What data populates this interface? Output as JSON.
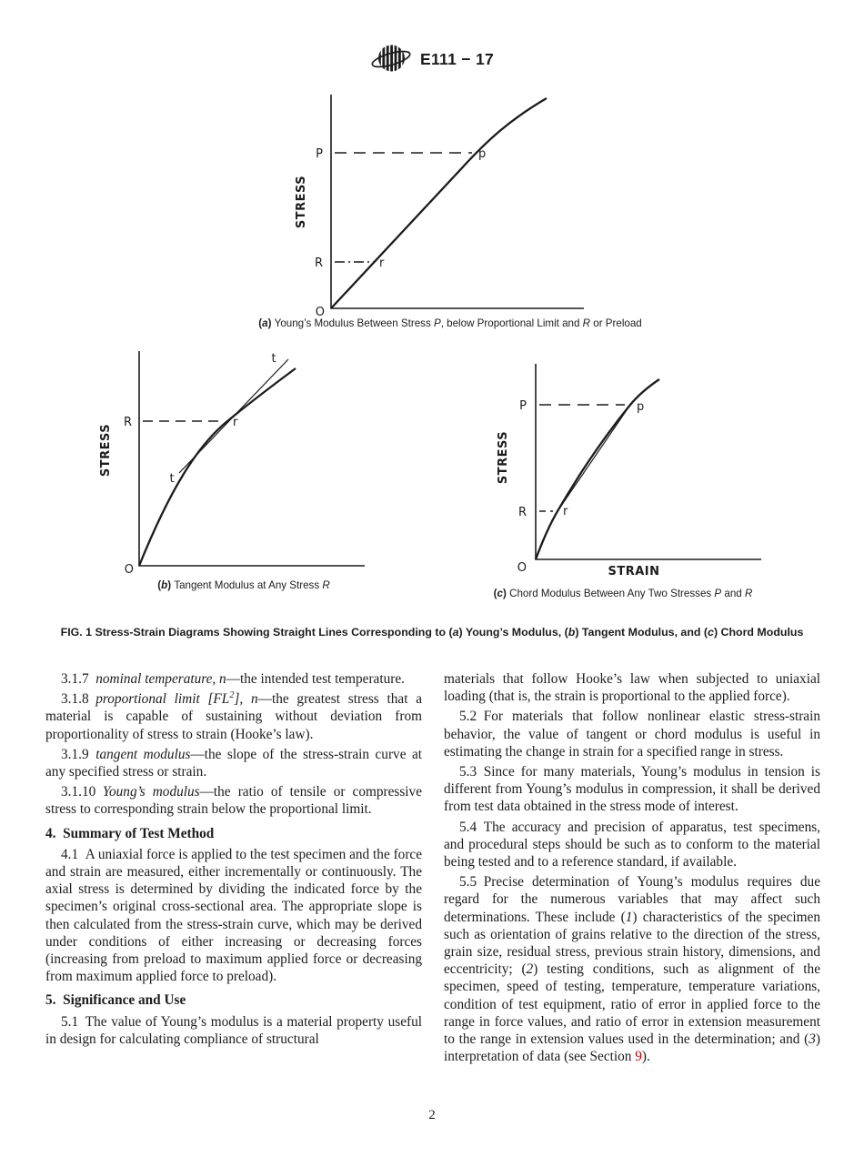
{
  "header": {
    "designation": "E111 − 17",
    "logo": "astm-logo"
  },
  "figures": {
    "a": {
      "stress_axis": "STRESS",
      "origin": "O",
      "point_P": "P",
      "point_p": "p",
      "point_R": "R",
      "point_r": "r",
      "caption": [
        {
          "t": "(",
          "b": true
        },
        {
          "t": "a",
          "b": true,
          "i": true
        },
        {
          "t": ") ",
          "b": true
        },
        {
          "t": "Young’s Modulus Between Stress "
        },
        {
          "t": "P",
          "i": true
        },
        {
          "t": ", below Proportional Limit and "
        },
        {
          "t": "R",
          "i": true
        },
        {
          "t": " or Preload"
        }
      ]
    },
    "b": {
      "stress_axis": "STRESS",
      "origin": "O",
      "point_R": "R",
      "point_r": "r",
      "tangent_label": "t",
      "caption": [
        {
          "t": "(",
          "b": true
        },
        {
          "t": "b",
          "b": true,
          "i": true
        },
        {
          "t": ") ",
          "b": true
        },
        {
          "t": "Tangent Modulus at Any Stress "
        },
        {
          "t": "R",
          "i": true
        }
      ]
    },
    "c": {
      "stress_axis": "STRESS",
      "strain_axis": "STRAIN",
      "origin": "O",
      "point_P": "P",
      "point_p": "p",
      "point_R": "R",
      "point_r": "r",
      "caption": [
        {
          "t": "(",
          "b": true
        },
        {
          "t": "c",
          "b": true,
          "i": true
        },
        {
          "t": ") ",
          "b": true
        },
        {
          "t": "Chord Modulus Between Any Two Stresses "
        },
        {
          "t": "P",
          "i": true
        },
        {
          "t": " and "
        },
        {
          "t": "R",
          "i": true
        }
      ]
    },
    "fig1_caption": [
      {
        "t": "FIG. 1 Stress-Strain Diagrams Showing Straight Lines Corresponding to ("
      },
      {
        "t": "a",
        "i": true
      },
      {
        "t": ") Young’s Modulus, ("
      },
      {
        "t": "b",
        "i": true
      },
      {
        "t": ") Tangent Modulus, and ("
      },
      {
        "t": "c",
        "i": true
      },
      {
        "t": ") Chord Modulus"
      }
    ]
  },
  "left_column": [
    {
      "segments": [
        {
          "t": "3.1.7 "
        },
        {
          "t": "nominal temperature, n",
          "i": true
        },
        {
          "t": "—the intended test temperature."
        }
      ]
    },
    {
      "segments": [
        {
          "t": "3.1.8 "
        },
        {
          "t": "proportional limit [FL",
          "i": true
        },
        {
          "t": "2",
          "i": true,
          "sup": true
        },
        {
          "t": "], n",
          "i": true
        },
        {
          "t": "—the greatest stress that a material is capable of sustaining without deviation from proportionality of stress to strain (Hooke’s law)."
        }
      ]
    },
    {
      "segments": [
        {
          "t": "3.1.9 "
        },
        {
          "t": "tangent modulus",
          "i": true
        },
        {
          "t": "—the slope of the stress-strain curve at any specified stress or strain."
        }
      ]
    },
    {
      "segments": [
        {
          "t": "3.1.10 "
        },
        {
          "t": "Young’s modulus",
          "i": true
        },
        {
          "t": "—the ratio of tensile or compressive stress to corresponding strain below the proportional limit."
        }
      ]
    },
    {
      "heading": "4. Summary of Test Method"
    },
    {
      "segments": [
        {
          "t": "4.1 A uniaxial force is applied to the test specimen and the force and strain are measured, either incrementally or continuously. The axial stress is determined by dividing the indicated force by the specimen’s original cross-sectional area. The appropriate slope is then calculated from the stress-strain curve, which may be derived under conditions of either increasing or decreasing forces (increasing from preload to maximum applied force or decreasing from maximum applied force to preload)."
        }
      ]
    },
    {
      "heading": "5. Significance and Use"
    },
    {
      "segments": [
        {
          "t": "5.1 The value of Young’s modulus is a material property useful in design for calculating compliance of structural"
        }
      ]
    }
  ],
  "right_column": [
    {
      "segments": [
        {
          "t": "materials that follow Hooke’s law when subjected to uniaxial loading (that is, the strain is proportional to the applied force)."
        }
      ]
    },
    {
      "segments": [
        {
          "t": "5.2 For materials that follow nonlinear elastic stress-strain behavior, the value of tangent or chord modulus is useful in estimating the change in strain for a specified range in stress."
        }
      ]
    },
    {
      "segments": [
        {
          "t": "5.3 Since for many materials, Young’s modulus in tension is different from Young’s modulus in compression, it shall be derived from test data obtained in the stress mode of interest."
        }
      ]
    },
    {
      "segments": [
        {
          "t": "5.4 The accuracy and precision of apparatus, test specimens, and procedural steps should be such as to conform to the material being tested and to a reference standard, if available."
        }
      ]
    },
    {
      "segments": [
        {
          "t": "5.5 Precise determination of Young’s modulus requires due regard for the numerous variables that may affect such determinations. These include ("
        },
        {
          "t": "1",
          "i": true
        },
        {
          "t": ") characteristics of the specimen such as orientation of grains relative to the direction of the stress, grain size, residual stress, previous strain history, dimensions, and eccentricity; ("
        },
        {
          "t": "2",
          "i": true
        },
        {
          "t": ") testing conditions, such as alignment of the specimen, speed of testing, temperature, temperature variations, condition of test equipment, ratio of error in applied force to the range in force values, and ratio of error in extension measurement to the range in extension values used in the determination; and ("
        },
        {
          "t": "3",
          "i": true
        },
        {
          "t": ") interpretation of data (see Section "
        },
        {
          "t": "9",
          "c": "#c00000",
          "name": "section-9-link",
          "link": true
        },
        {
          "t": ")."
        }
      ]
    }
  ],
  "page": {
    "number": "2"
  },
  "colors": {
    "text": "#1c1c1c",
    "link": "#c00000",
    "background": "#ffffff"
  }
}
